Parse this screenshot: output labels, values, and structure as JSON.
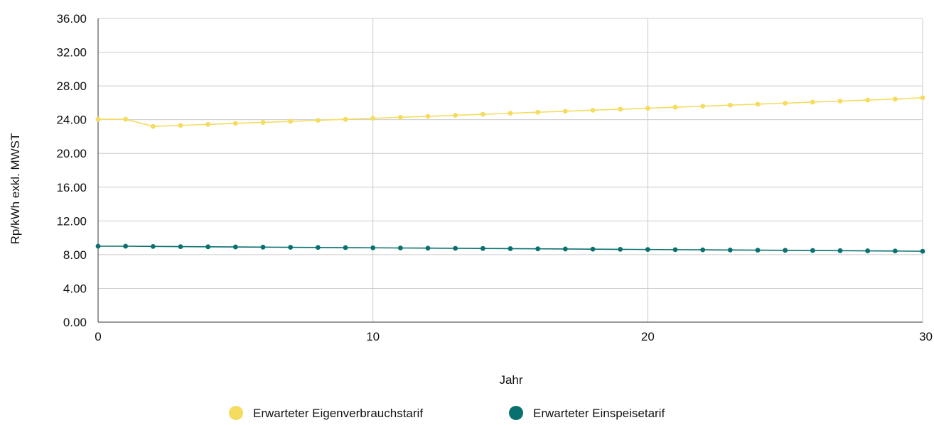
{
  "chart_data": {
    "type": "line",
    "title": "",
    "xlabel": "Jahr",
    "ylabel": "Rp/kWh exkl. MWST",
    "xlim": [
      0,
      30
    ],
    "ylim": [
      0,
      36
    ],
    "x_ticks": [
      0,
      10,
      20,
      30
    ],
    "y_ticks": [
      0,
      4,
      8,
      12,
      16,
      20,
      24,
      28,
      32,
      36
    ],
    "y_tick_labels": [
      "0.00",
      "4.00",
      "8.00",
      "12.00",
      "16.00",
      "20.00",
      "24.00",
      "28.00",
      "32.00",
      "36.00"
    ],
    "grid": true,
    "legend_position": "bottom",
    "x": [
      0,
      1,
      2,
      3,
      4,
      5,
      6,
      7,
      8,
      9,
      10,
      11,
      12,
      13,
      14,
      15,
      16,
      17,
      18,
      19,
      20,
      21,
      22,
      23,
      24,
      25,
      26,
      27,
      28,
      29,
      30
    ],
    "series": [
      {
        "name": "Erwarteter Eigenverbrauchstarif",
        "color": "#f5dc5f",
        "values": [
          24.05,
          24.05,
          23.2,
          23.32,
          23.44,
          23.56,
          23.68,
          23.8,
          23.92,
          24.04,
          24.16,
          24.28,
          24.4,
          24.52,
          24.64,
          24.76,
          24.88,
          25.0,
          25.12,
          25.24,
          25.36,
          25.48,
          25.6,
          25.72,
          25.84,
          25.96,
          26.08,
          26.2,
          26.32,
          26.44,
          26.6
        ]
      },
      {
        "name": "Erwarteter Einspeisetarif",
        "color": "#08716f",
        "values": [
          9.0,
          9.0,
          8.97,
          8.95,
          8.93,
          8.91,
          8.89,
          8.87,
          8.85,
          8.83,
          8.81,
          8.79,
          8.77,
          8.75,
          8.73,
          8.71,
          8.69,
          8.67,
          8.65,
          8.63,
          8.61,
          8.59,
          8.57,
          8.55,
          8.53,
          8.51,
          8.49,
          8.47,
          8.45,
          8.43,
          8.4
        ]
      }
    ]
  }
}
